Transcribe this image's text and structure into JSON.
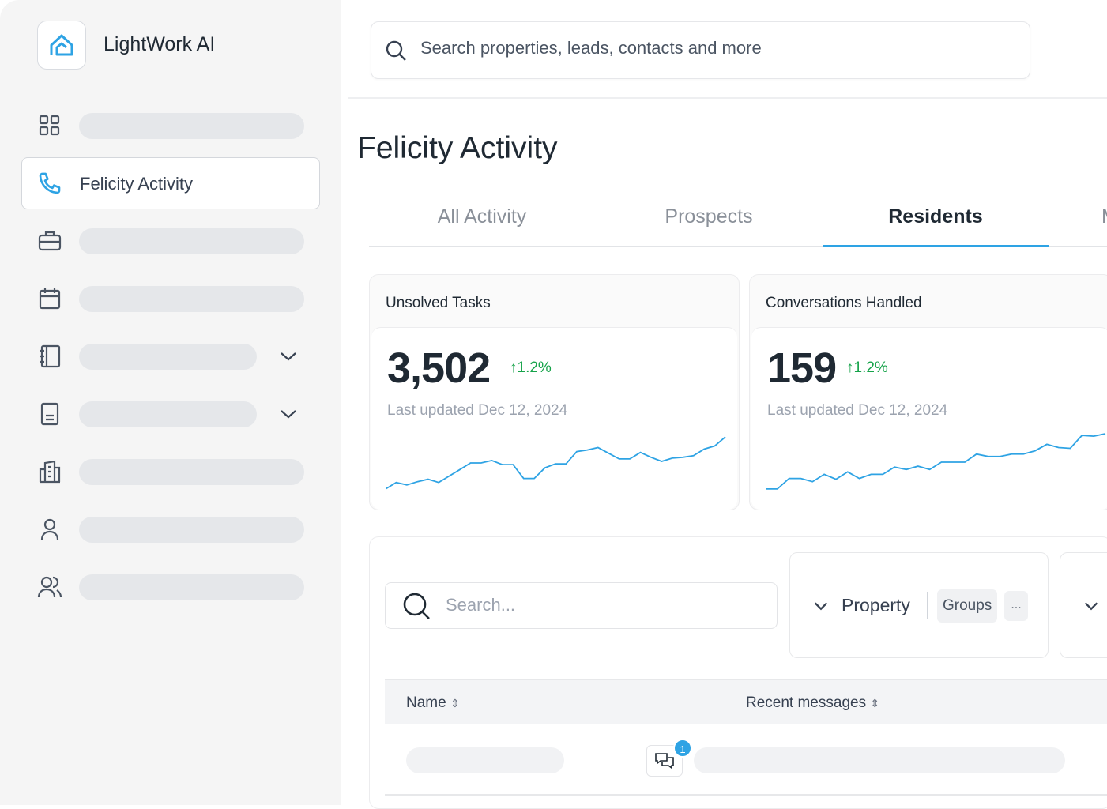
{
  "brand": {
    "name": "LightWork AI",
    "accent": "#2ea3e4"
  },
  "sidebar": {
    "items": [
      {
        "icon": "grid-icon",
        "label": ""
      },
      {
        "icon": "phone-icon",
        "label": "Felicity Activity",
        "active": true
      },
      {
        "icon": "briefcase-icon",
        "label": ""
      },
      {
        "icon": "calendar-icon",
        "label": ""
      },
      {
        "icon": "notebook-icon",
        "label": "",
        "expandable": true
      },
      {
        "icon": "document-icon",
        "label": "",
        "expandable": true
      },
      {
        "icon": "building-icon",
        "label": ""
      },
      {
        "icon": "user-icon",
        "label": ""
      },
      {
        "icon": "users-icon",
        "label": ""
      }
    ]
  },
  "search": {
    "placeholder": "Search properties, leads, contacts and more"
  },
  "page": {
    "title": "Felicity Activity"
  },
  "tabs": [
    {
      "label": "All Activity"
    },
    {
      "label": "Prospects"
    },
    {
      "label": "Residents",
      "selected": true
    },
    {
      "label": "M"
    }
  ],
  "stats": [
    {
      "title": "Unsolved Tasks",
      "value": "3,502",
      "delta": "1.2%",
      "updated": "Last updated Dec 12, 2024",
      "trend": [
        2,
        10,
        7,
        11,
        14,
        10,
        18,
        26,
        34,
        34,
        37,
        32,
        32,
        15,
        15,
        28,
        33,
        33,
        48,
        50,
        53,
        46,
        39,
        39,
        47,
        41,
        36,
        40,
        41,
        43,
        51,
        55,
        66
      ]
    },
    {
      "title": "Conversations Handled",
      "value": "159",
      "delta": "1.2%",
      "updated": "Last updated Dec 12, 2024",
      "trend": [
        2,
        2,
        15,
        15,
        11,
        20,
        14,
        23,
        15,
        20,
        20,
        29,
        26,
        30,
        26,
        35,
        35,
        35,
        45,
        42,
        42,
        45,
        45,
        49,
        57,
        53,
        52,
        68,
        67,
        70
      ]
    }
  ],
  "table": {
    "search_placeholder": "Search...",
    "filter": {
      "label": "Property",
      "chip": "Groups",
      "more": "..."
    },
    "columns": [
      {
        "label": "Name"
      },
      {
        "label": "Recent messages"
      }
    ],
    "rows": [
      {
        "badge": "1"
      }
    ]
  },
  "colors": {
    "positive": "#16a34a",
    "sparkline": "#2ea3e4"
  }
}
